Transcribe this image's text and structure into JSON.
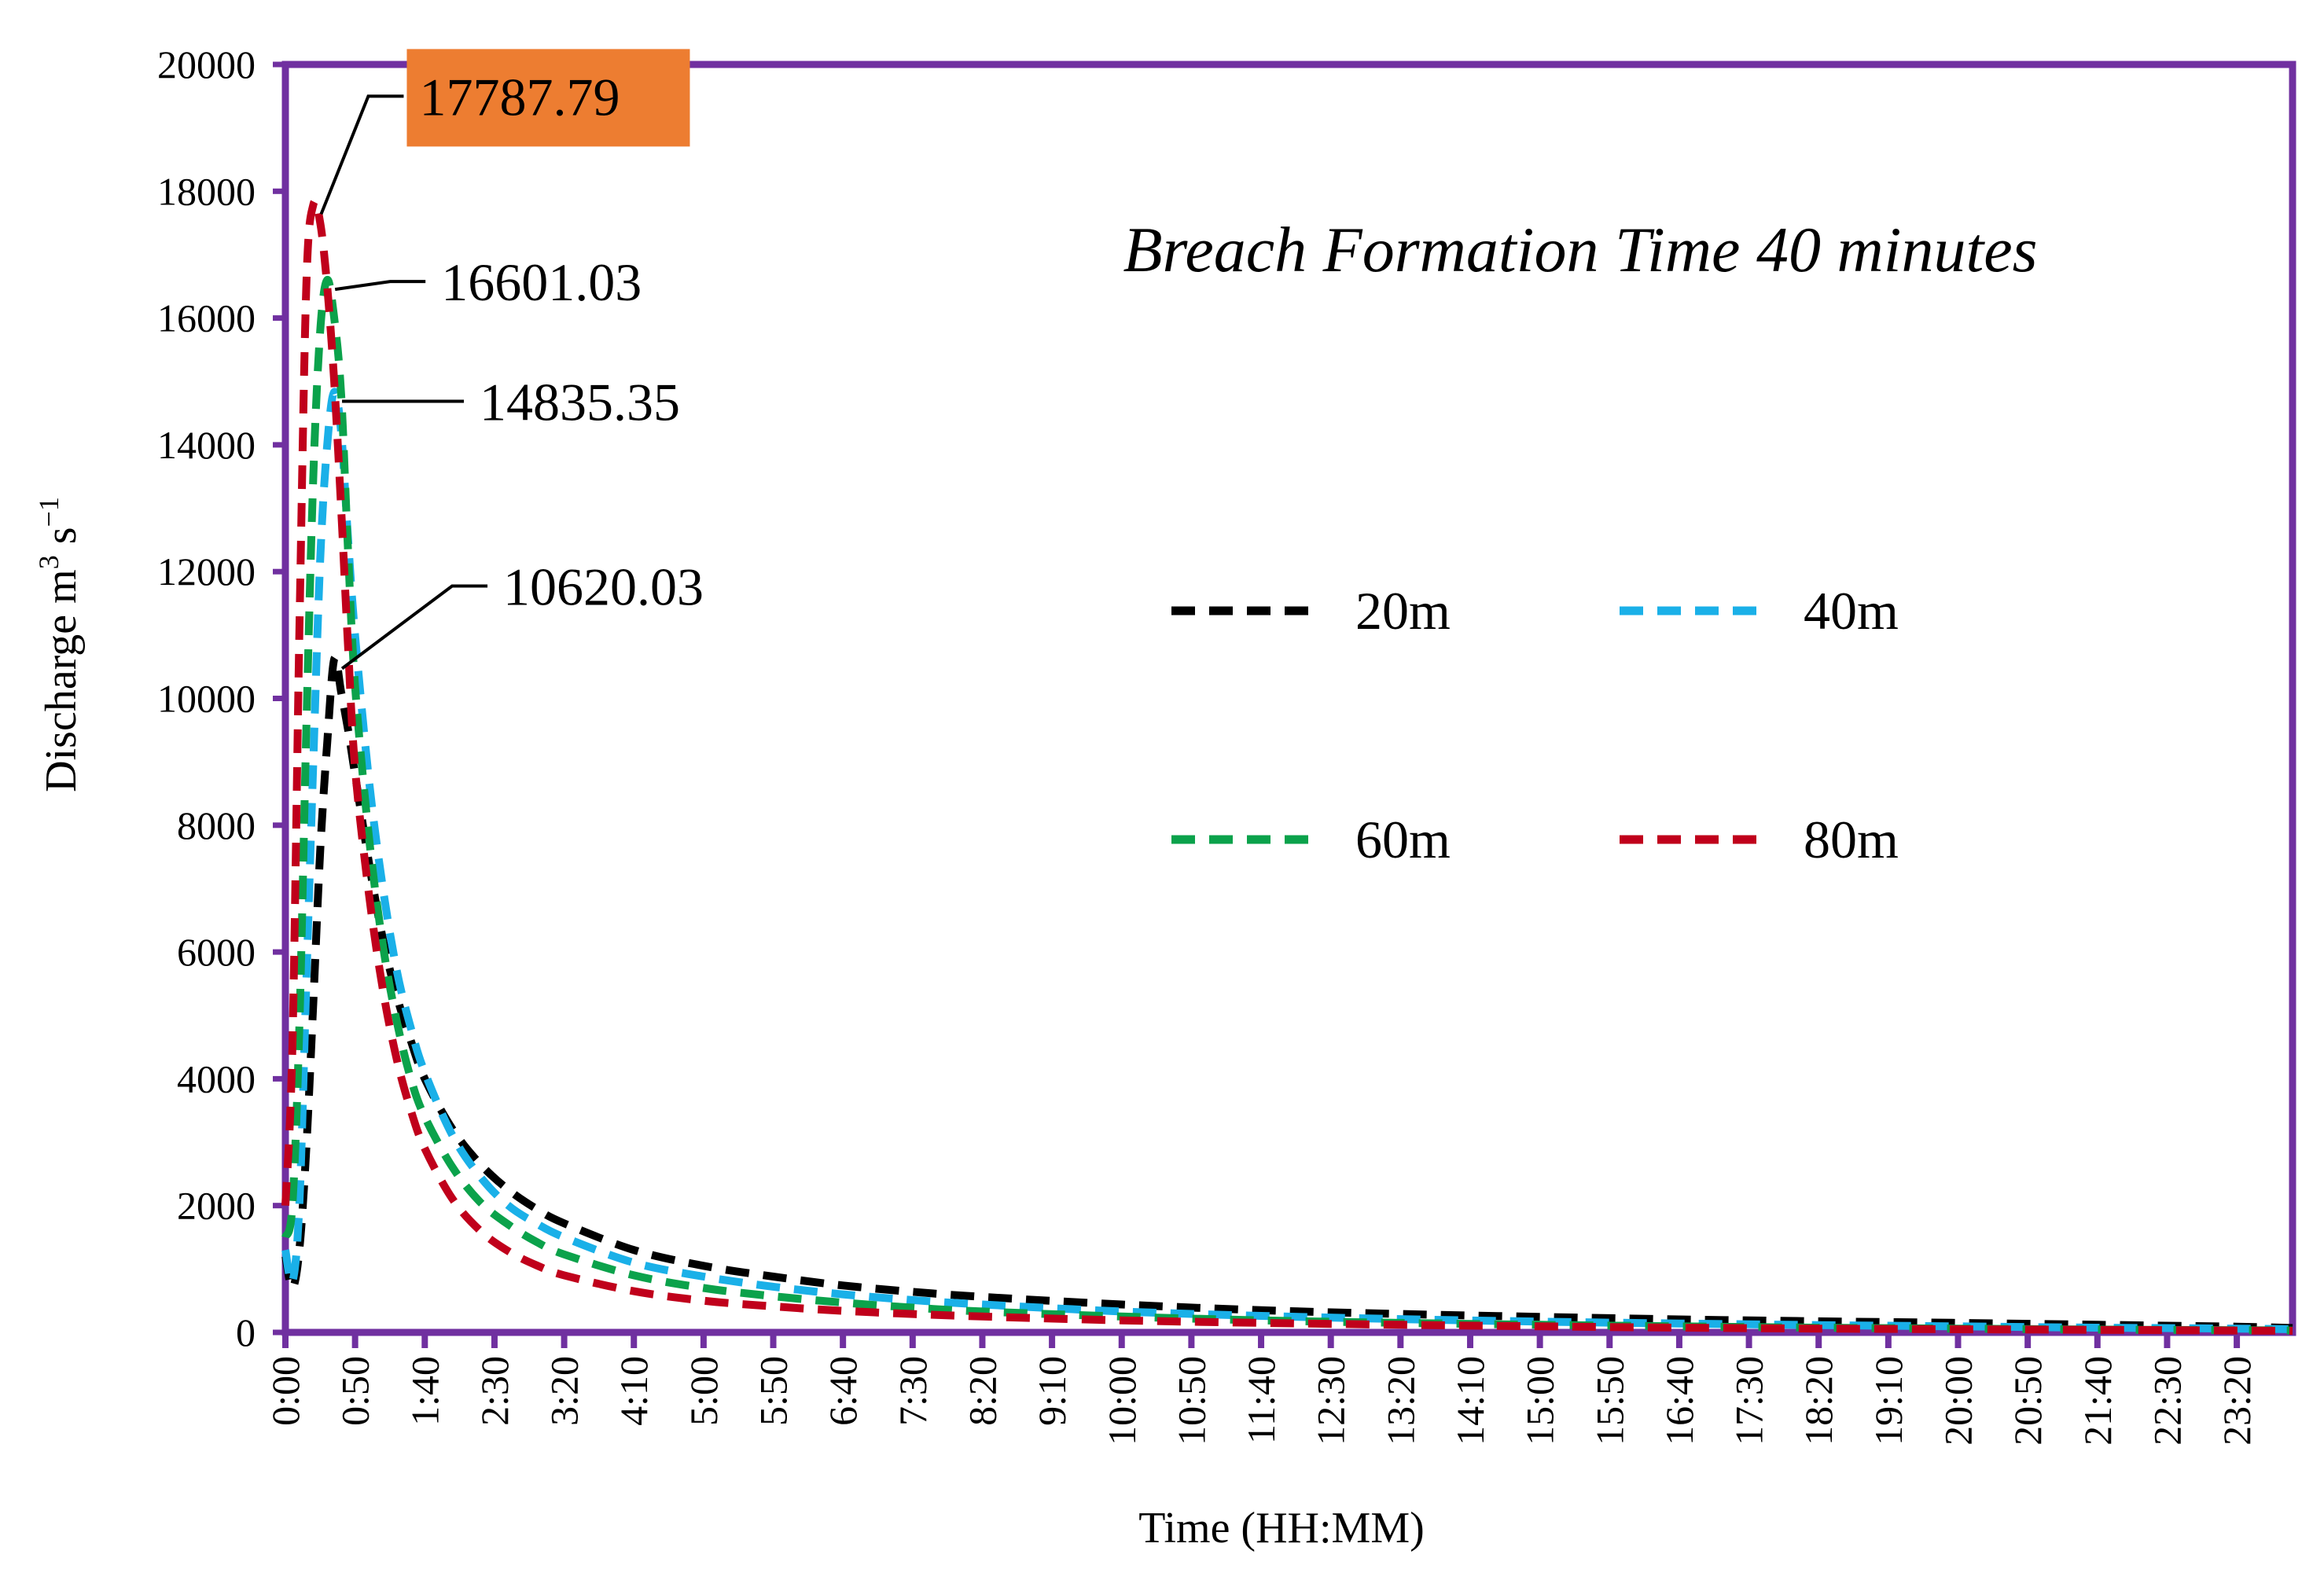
{
  "chart_data": {
    "type": "line",
    "title": "Breach Formation Time 40 minutes",
    "xlabel": "Time (HH:MM)",
    "ylabel_main": "Discharge m",
    "ylabel_sup1": "3",
    "ylabel_mid": " s",
    "ylabel_sup2": "−1",
    "xlim_minutes": [
      0,
      1440
    ],
    "ylim": [
      0,
      20000
    ],
    "y_ticks": [
      "0",
      "2000",
      "4000",
      "6000",
      "8000",
      "10000",
      "12000",
      "14000",
      "16000",
      "18000",
      "20000"
    ],
    "x_tick_minutes": [
      0,
      50,
      100,
      150,
      200,
      250,
      300,
      350,
      400,
      450,
      500,
      550,
      600,
      650,
      700,
      750,
      800,
      850,
      900,
      950,
      1000,
      1050,
      1100,
      1150,
      1200,
      1250,
      1300,
      1350,
      1400
    ],
    "x_tick_labels": [
      "0:00",
      "0:50",
      "1:40",
      "2:30",
      "3:20",
      "4:10",
      "5:00",
      "5:50",
      "6:40",
      "7:30",
      "8:20",
      "9:10",
      "10:00",
      "10:50",
      "11:40",
      "12:30",
      "13:20",
      "14:10",
      "15:00",
      "15:50",
      "16:40",
      "17:30",
      "18:20",
      "19:10",
      "20:00",
      "20:50",
      "21:40",
      "22:30",
      "23:20"
    ],
    "series": [
      {
        "name": "20m",
        "color": "#000000",
        "x": [
          0,
          5,
          10,
          15,
          20,
          25,
          30,
          35,
          40,
          45,
          50,
          60,
          70,
          80,
          90,
          100,
          120,
          140,
          160,
          180,
          200,
          250,
          300,
          350,
          400,
          450,
          500,
          600,
          700,
          800,
          900,
          1000,
          1100,
          1200,
          1300,
          1400,
          1440
        ],
        "y": [
          1200,
          700,
          1300,
          2900,
          5200,
          7600,
          9300,
          10620,
          10100,
          9500,
          8800,
          7400,
          6200,
          5300,
          4600,
          4000,
          3200,
          2650,
          2250,
          1950,
          1720,
          1300,
          1050,
          880,
          740,
          640,
          560,
          440,
          350,
          290,
          245,
          205,
          175,
          150,
          120,
          90,
          70
        ]
      },
      {
        "name": "40m",
        "color": "#1AB0E8",
        "x": [
          0,
          5,
          10,
          15,
          20,
          25,
          30,
          35,
          40,
          45,
          50,
          60,
          70,
          80,
          90,
          100,
          120,
          140,
          160,
          180,
          200,
          250,
          300,
          350,
          400,
          450,
          500,
          600,
          700,
          800,
          900,
          1000,
          1100,
          1200,
          1300,
          1400,
          1440
        ],
        "y": [
          1300,
          800,
          2000,
          5500,
          9000,
          12200,
          14000,
          14835,
          14200,
          12500,
          11000,
          8700,
          7000,
          5700,
          4800,
          4100,
          3100,
          2450,
          2000,
          1720,
          1500,
          1100,
          880,
          720,
          600,
          510,
          440,
          330,
          260,
          210,
          170,
          140,
          115,
          95,
          75,
          60,
          50
        ]
      },
      {
        "name": "60m",
        "color": "#0BA24B",
        "x": [
          0,
          5,
          10,
          15,
          20,
          25,
          30,
          35,
          40,
          45,
          50,
          60,
          70,
          80,
          90,
          100,
          120,
          140,
          160,
          180,
          200,
          250,
          300,
          350,
          400,
          450,
          500,
          600,
          700,
          800,
          900,
          1000,
          1100,
          1200,
          1300,
          1400,
          1440
        ],
        "y": [
          1500,
          2000,
          4800,
          9500,
          13500,
          15800,
          16601,
          16000,
          14800,
          12300,
          10200,
          7800,
          6100,
          4900,
          4000,
          3400,
          2600,
          2050,
          1700,
          1430,
          1230,
          900,
          700,
          570,
          470,
          390,
          330,
          250,
          190,
          150,
          120,
          95,
          75,
          60,
          45,
          35,
          30
        ]
      },
      {
        "name": "80m",
        "color": "#C0001B",
        "x": [
          0,
          5,
          10,
          15,
          20,
          25,
          30,
          35,
          40,
          45,
          50,
          60,
          70,
          80,
          90,
          100,
          120,
          140,
          160,
          180,
          200,
          250,
          300,
          350,
          400,
          450,
          500,
          600,
          700,
          800,
          900,
          1000,
          1100,
          1200,
          1300,
          1400,
          1440
        ],
        "y": [
          2000,
          4500,
          11000,
          16500,
          17788,
          17500,
          16500,
          15000,
          13000,
          10800,
          8900,
          6900,
          5400,
          4300,
          3500,
          2900,
          2100,
          1600,
          1280,
          1060,
          900,
          650,
          500,
          410,
          340,
          290,
          250,
          190,
          150,
          120,
          95,
          75,
          60,
          50,
          40,
          30,
          25
        ]
      }
    ],
    "annotations": [
      {
        "text": "17787.79",
        "series": "80m",
        "highlight": "#ED7D31"
      },
      {
        "text": "16601.03",
        "series": "60m"
      },
      {
        "text": "14835.35",
        "series": "40m"
      },
      {
        "text": "10620.03",
        "series": "20m"
      }
    ],
    "frame_color": "#7030A0",
    "grid": false,
    "legend_position": "center-right"
  }
}
